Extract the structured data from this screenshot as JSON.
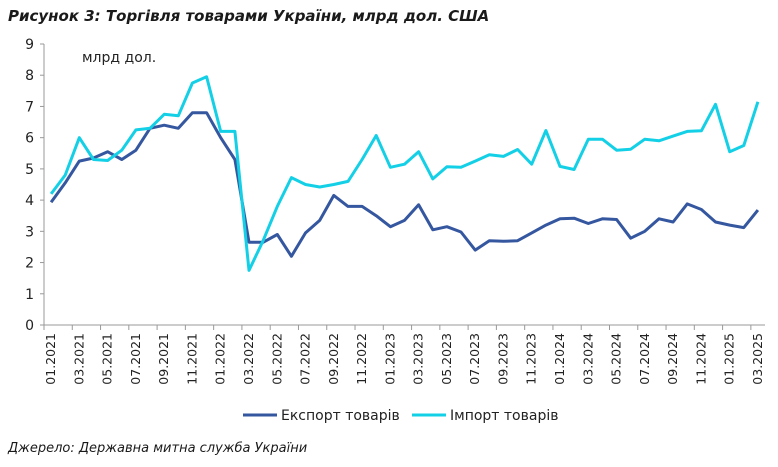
{
  "chart_data": {
    "type": "line",
    "title": "Рисунок 3: Торгівля товарами України, млрд дол. США",
    "unit_label": "млрд дол.",
    "source": "Джерело: Державна митна служба України",
    "ylim": [
      0,
      9
    ],
    "yticks": [
      0,
      1,
      2,
      3,
      4,
      5,
      6,
      7,
      8,
      9
    ],
    "x": [
      "01.2021",
      "02.2021",
      "03.2021",
      "04.2021",
      "05.2021",
      "06.2021",
      "07.2021",
      "08.2021",
      "09.2021",
      "10.2021",
      "11.2021",
      "12.2021",
      "01.2022",
      "02.2022",
      "03.2022",
      "04.2022",
      "05.2022",
      "06.2022",
      "07.2022",
      "08.2022",
      "09.2022",
      "10.2022",
      "11.2022",
      "12.2022",
      "01.2023",
      "02.2023",
      "03.2023",
      "04.2023",
      "05.2023",
      "06.2023",
      "07.2023",
      "08.2023",
      "09.2023",
      "10.2023",
      "11.2023",
      "12.2023",
      "01.2024",
      "02.2024",
      "03.2024",
      "04.2024",
      "05.2024",
      "06.2024",
      "07.2024",
      "08.2024",
      "09.2024",
      "10.2024",
      "11.2024",
      "12.2024",
      "01.2025",
      "02.2025",
      "03.2025"
    ],
    "legend_position": "bottom",
    "series": [
      {
        "name": "Експорт товарів",
        "color": "#3557a0",
        "values": [
          3.93,
          4.55,
          5.25,
          5.35,
          5.55,
          5.3,
          5.6,
          6.3,
          6.4,
          6.3,
          6.8,
          6.8,
          6.0,
          5.3,
          2.65,
          2.65,
          2.9,
          2.2,
          2.95,
          3.35,
          4.15,
          3.8,
          3.8,
          3.5,
          3.15,
          3.35,
          3.85,
          3.05,
          3.15,
          2.98,
          2.4,
          2.7,
          2.68,
          2.7,
          2.95,
          3.2,
          3.4,
          3.42,
          3.25,
          3.4,
          3.38,
          2.78,
          3.0,
          3.4,
          3.3,
          3.88,
          3.7,
          3.3,
          3.2,
          3.12,
          3.68
        ]
      },
      {
        "name": "Імпорт товарів",
        "color": "#14d0e6",
        "values": [
          4.2,
          4.8,
          6.0,
          5.3,
          5.27,
          5.6,
          6.25,
          6.3,
          6.75,
          6.7,
          7.75,
          7.95,
          6.2,
          6.2,
          1.75,
          2.7,
          3.8,
          4.72,
          4.5,
          4.42,
          4.5,
          4.6,
          5.3,
          6.07,
          5.05,
          5.15,
          5.55,
          4.68,
          5.07,
          5.05,
          5.25,
          5.45,
          5.4,
          5.62,
          5.15,
          6.23,
          5.08,
          4.98,
          5.95,
          5.95,
          5.6,
          5.63,
          5.95,
          5.9,
          6.05,
          6.2,
          6.22,
          7.07,
          5.55,
          5.75,
          7.15
        ]
      }
    ]
  }
}
